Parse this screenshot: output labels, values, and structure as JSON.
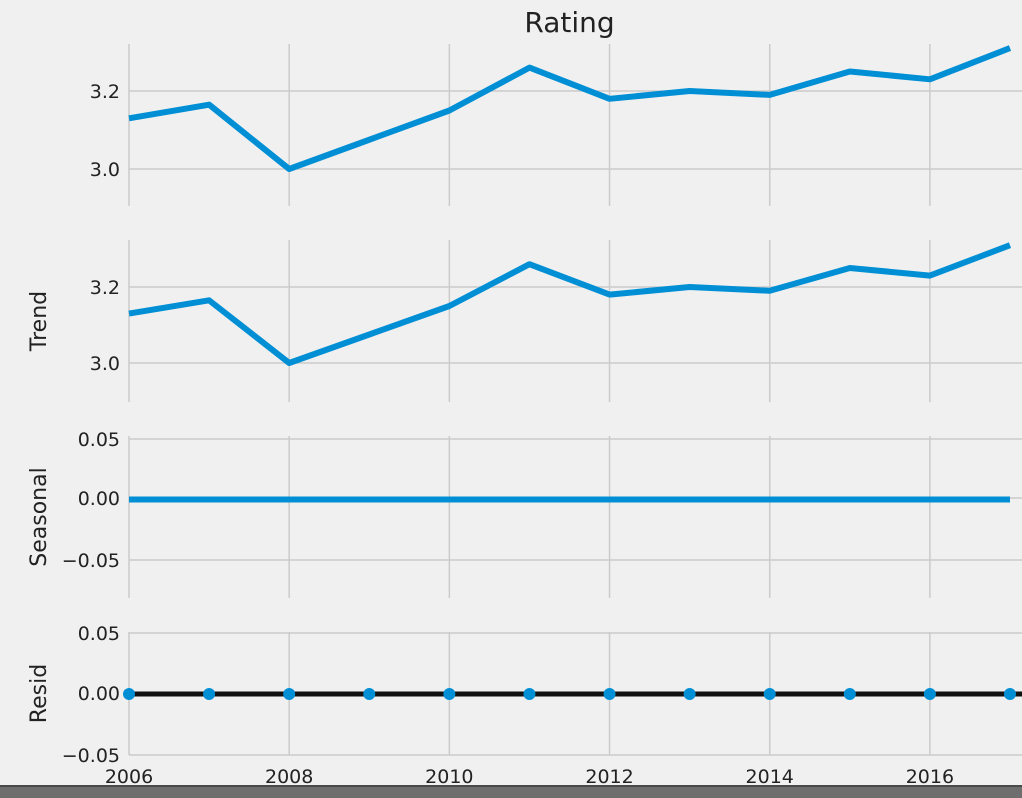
{
  "chart_data": [
    {
      "type": "line",
      "title": "Rating",
      "ylabel": "",
      "x": [
        2006,
        2007,
        2008,
        2009,
        2010,
        2011,
        2012,
        2013,
        2014,
        2015,
        2016,
        2017
      ],
      "series": [
        {
          "values": [
            3.13,
            3.165,
            3.0,
            3.075,
            3.15,
            3.26,
            3.18,
            3.2,
            3.19,
            3.25,
            3.23,
            3.31
          ]
        }
      ],
      "yticks": [
        "3.0",
        "3.2"
      ],
      "ylim": [
        2.97,
        3.33
      ],
      "grid": true,
      "color": "#008fd5"
    },
    {
      "type": "line",
      "title": "",
      "ylabel": "Trend",
      "x": [
        2006,
        2007,
        2008,
        2009,
        2010,
        2011,
        2012,
        2013,
        2014,
        2015,
        2016,
        2017
      ],
      "series": [
        {
          "values": [
            3.13,
            3.165,
            3.0,
            3.075,
            3.15,
            3.26,
            3.18,
            3.2,
            3.19,
            3.25,
            3.23,
            3.31
          ]
        }
      ],
      "yticks": [
        "3.0",
        "3.2"
      ],
      "ylim": [
        2.97,
        3.33
      ],
      "grid": true,
      "color": "#008fd5"
    },
    {
      "type": "line",
      "title": "",
      "ylabel": "Seasonal",
      "x": [
        2006,
        2007,
        2008,
        2009,
        2010,
        2011,
        2012,
        2013,
        2014,
        2015,
        2016,
        2017
      ],
      "series": [
        {
          "values": [
            0,
            0,
            0,
            0,
            0,
            0,
            0,
            0,
            0,
            0,
            0,
            0
          ]
        }
      ],
      "yticks": [
        "0.05",
        "0.00",
        "−0.05"
      ],
      "ylim": [
        -0.065,
        0.065
      ],
      "grid": true,
      "color": "#008fd5"
    },
    {
      "type": "scatter",
      "title": "",
      "ylabel": "Resid",
      "x": [
        2006,
        2007,
        2008,
        2009,
        2010,
        2011,
        2012,
        2013,
        2014,
        2015,
        2016,
        2017
      ],
      "series": [
        {
          "values": [
            0,
            0,
            0,
            0,
            0,
            0,
            0,
            0,
            0,
            0,
            0,
            0
          ]
        }
      ],
      "yticks": [
        "0.05",
        "0.00",
        "−0.05"
      ],
      "ylim": [
        -0.06,
        0.065
      ],
      "grid": true,
      "zero_line": true,
      "color": "#008fd5"
    }
  ],
  "xaxis": {
    "ticks": [
      "2006",
      "2008",
      "2010",
      "2012",
      "2014",
      "2016"
    ],
    "range": [
      2006,
      2017
    ]
  }
}
